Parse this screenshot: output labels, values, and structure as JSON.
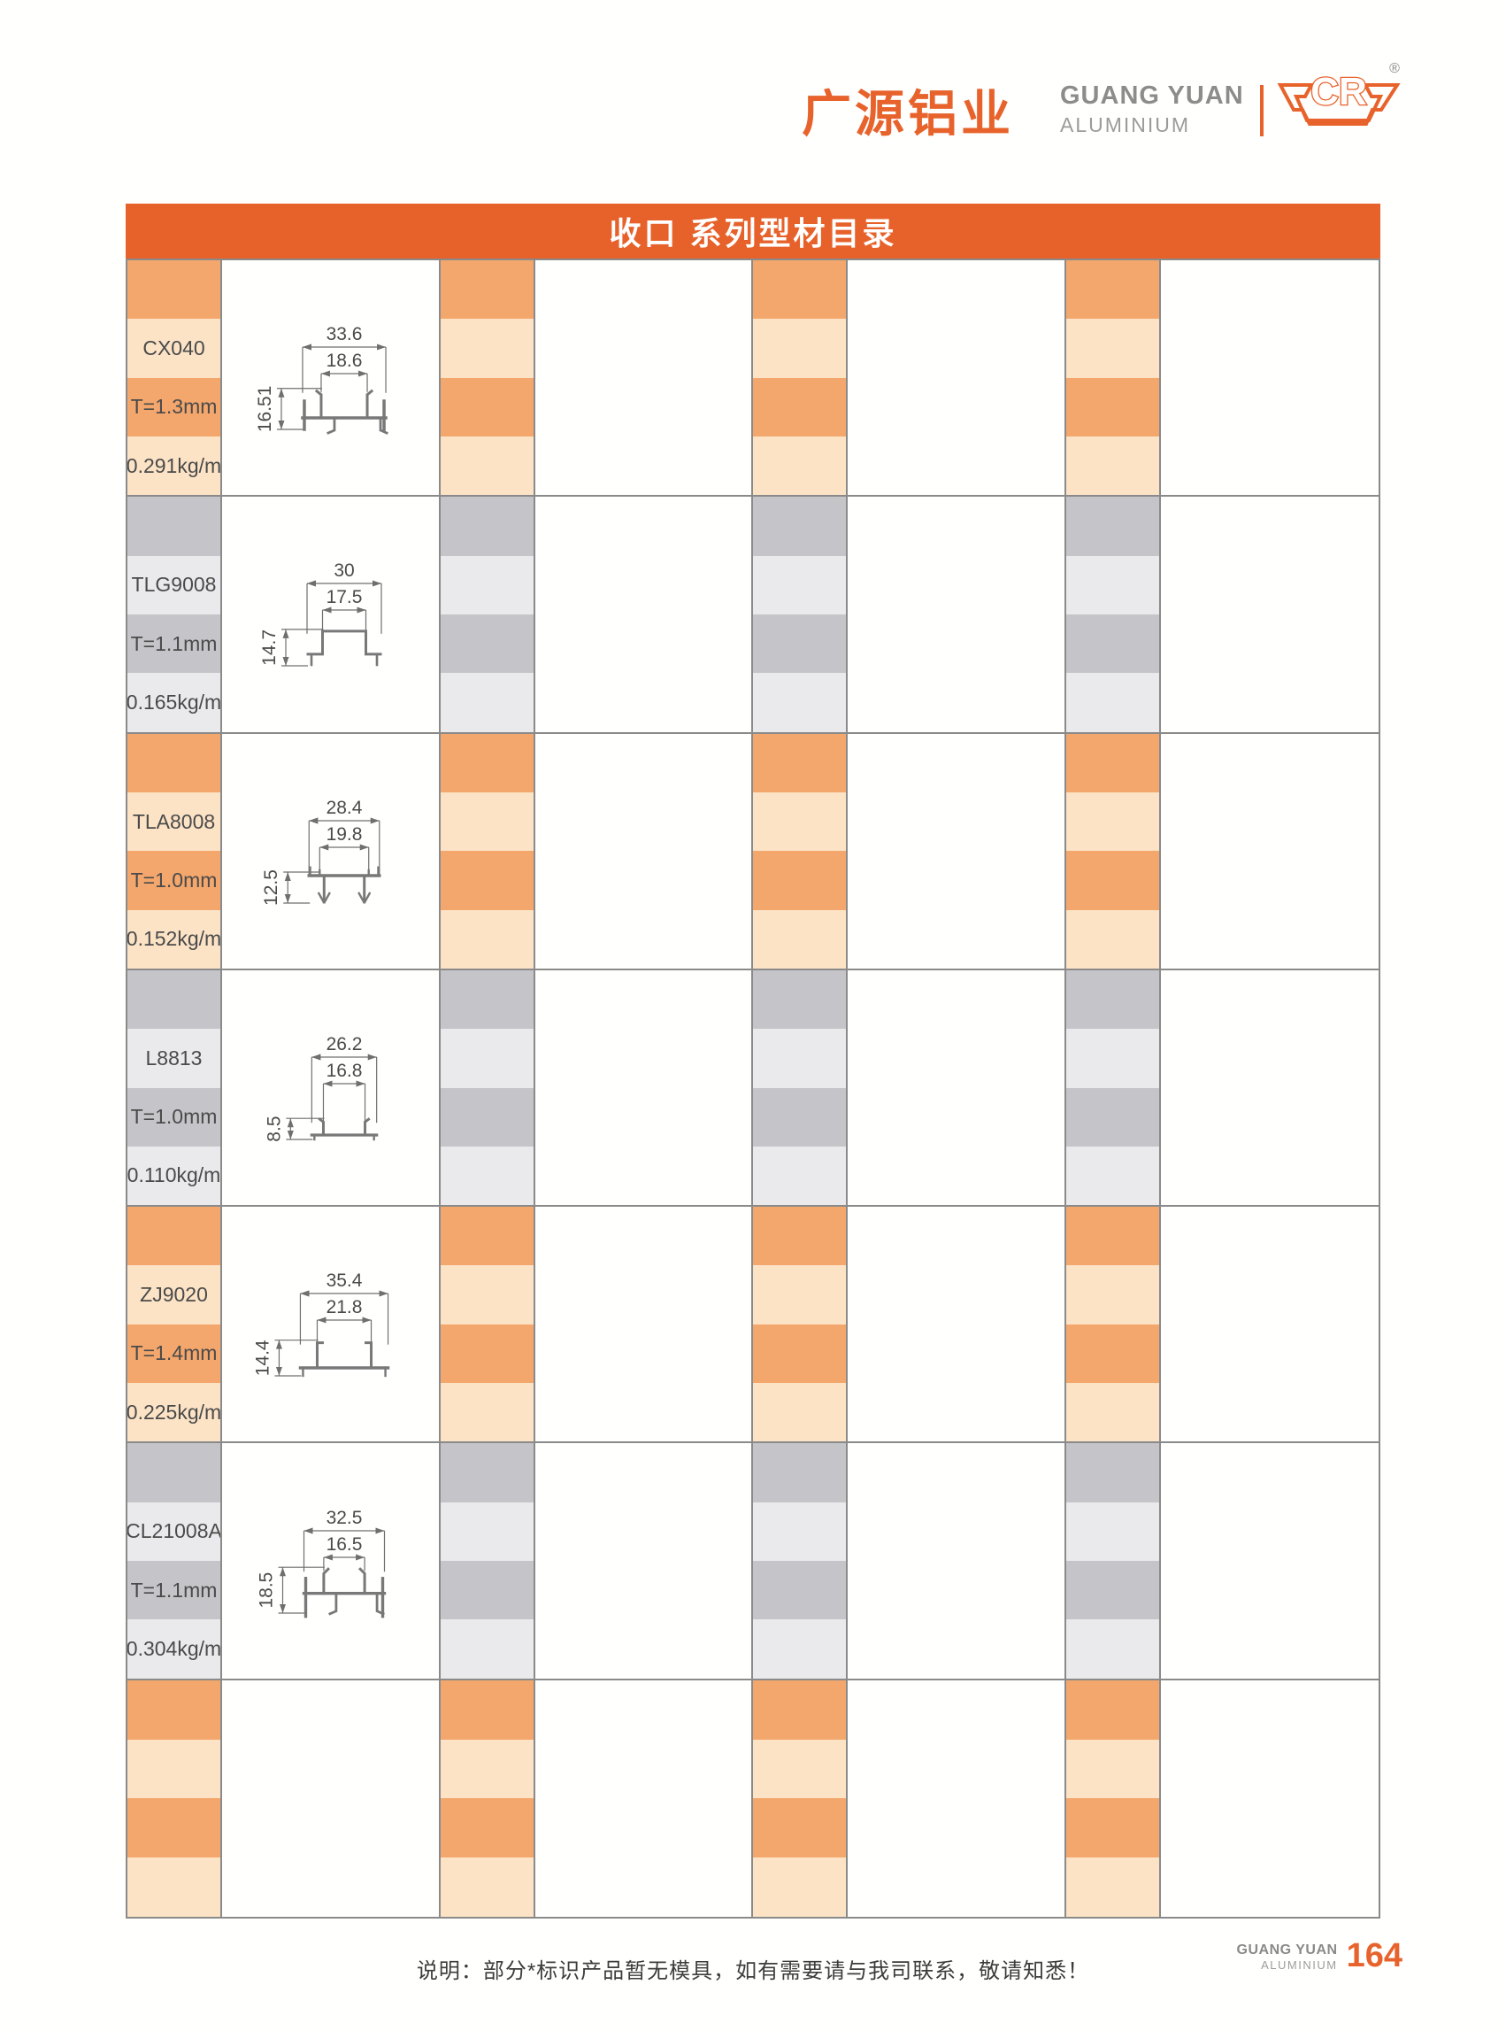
{
  "header": {
    "brand_cn": "广源铝业",
    "brand_en": "GUANG YUAN",
    "brand_sub": "ALUMINIUM",
    "emblem": "CR",
    "registered_mark": "®"
  },
  "title_bar": {
    "title": "收口 系列型材目录"
  },
  "catalog": {
    "column_groups": 4,
    "empty_rows": 1,
    "products": [
      {
        "code": "CX040",
        "thickness": "T=1.3mm",
        "weight": "0.291kg/m",
        "dims": {
          "outer_width": "33.6",
          "inner_width": "18.6",
          "height": "16.51"
        },
        "profile_shape": "double-hook",
        "theme": "orange"
      },
      {
        "code": "TLG9008",
        "thickness": "T=1.1mm",
        "weight": "0.165kg/m",
        "dims": {
          "outer_width": "30",
          "inner_width": "17.5",
          "height": "14.7"
        },
        "profile_shape": "hat",
        "theme": "gray"
      },
      {
        "code": "TLA8008",
        "thickness": "T=1.0mm",
        "weight": "0.152kg/m",
        "dims": {
          "outer_width": "28.4",
          "inner_width": "19.8",
          "height": "12.5"
        },
        "profile_shape": "flat-legs",
        "theme": "orange"
      },
      {
        "code": "L8813",
        "thickness": "T=1.0mm",
        "weight": "0.110kg/m",
        "dims": {
          "outer_width": "26.2",
          "inner_width": "16.8",
          "height": "8.5"
        },
        "profile_shape": "low-channel",
        "theme": "gray"
      },
      {
        "code": "ZJ9020",
        "thickness": "T=1.4mm",
        "weight": "0.225kg/m",
        "dims": {
          "outer_width": "35.4",
          "inner_width": "21.8",
          "height": "14.4"
        },
        "profile_shape": "u-channel",
        "theme": "orange"
      },
      {
        "code": "CL21008A",
        "thickness": "T=1.1mm",
        "weight": "0.304kg/m",
        "dims": {
          "outer_width": "32.5",
          "inner_width": "16.5",
          "height": "18.5"
        },
        "profile_shape": "double-hook-tall",
        "theme": "gray"
      }
    ]
  },
  "footer": {
    "note": "说明：部分*标识产品暂无模具，如有需要请与我司联系，敬请知悉！",
    "brand_en": "GUANG YUAN",
    "brand_sub": "ALUMINIUM",
    "page_number": "164"
  },
  "colors": {
    "accent_orange": "#E8632C",
    "title_bar_orange": "#E7612A",
    "band_orange_strong": "#F4A76C",
    "band_orange_light": "#FCE3C6",
    "band_gray_strong": "#C5C4C8",
    "band_gray_light": "#EAEAEC",
    "table_border": "#8A8A8A",
    "drawing_line": "#6F6F6F",
    "profile_line": "#787878",
    "text_dark": "#4A4A4A"
  }
}
